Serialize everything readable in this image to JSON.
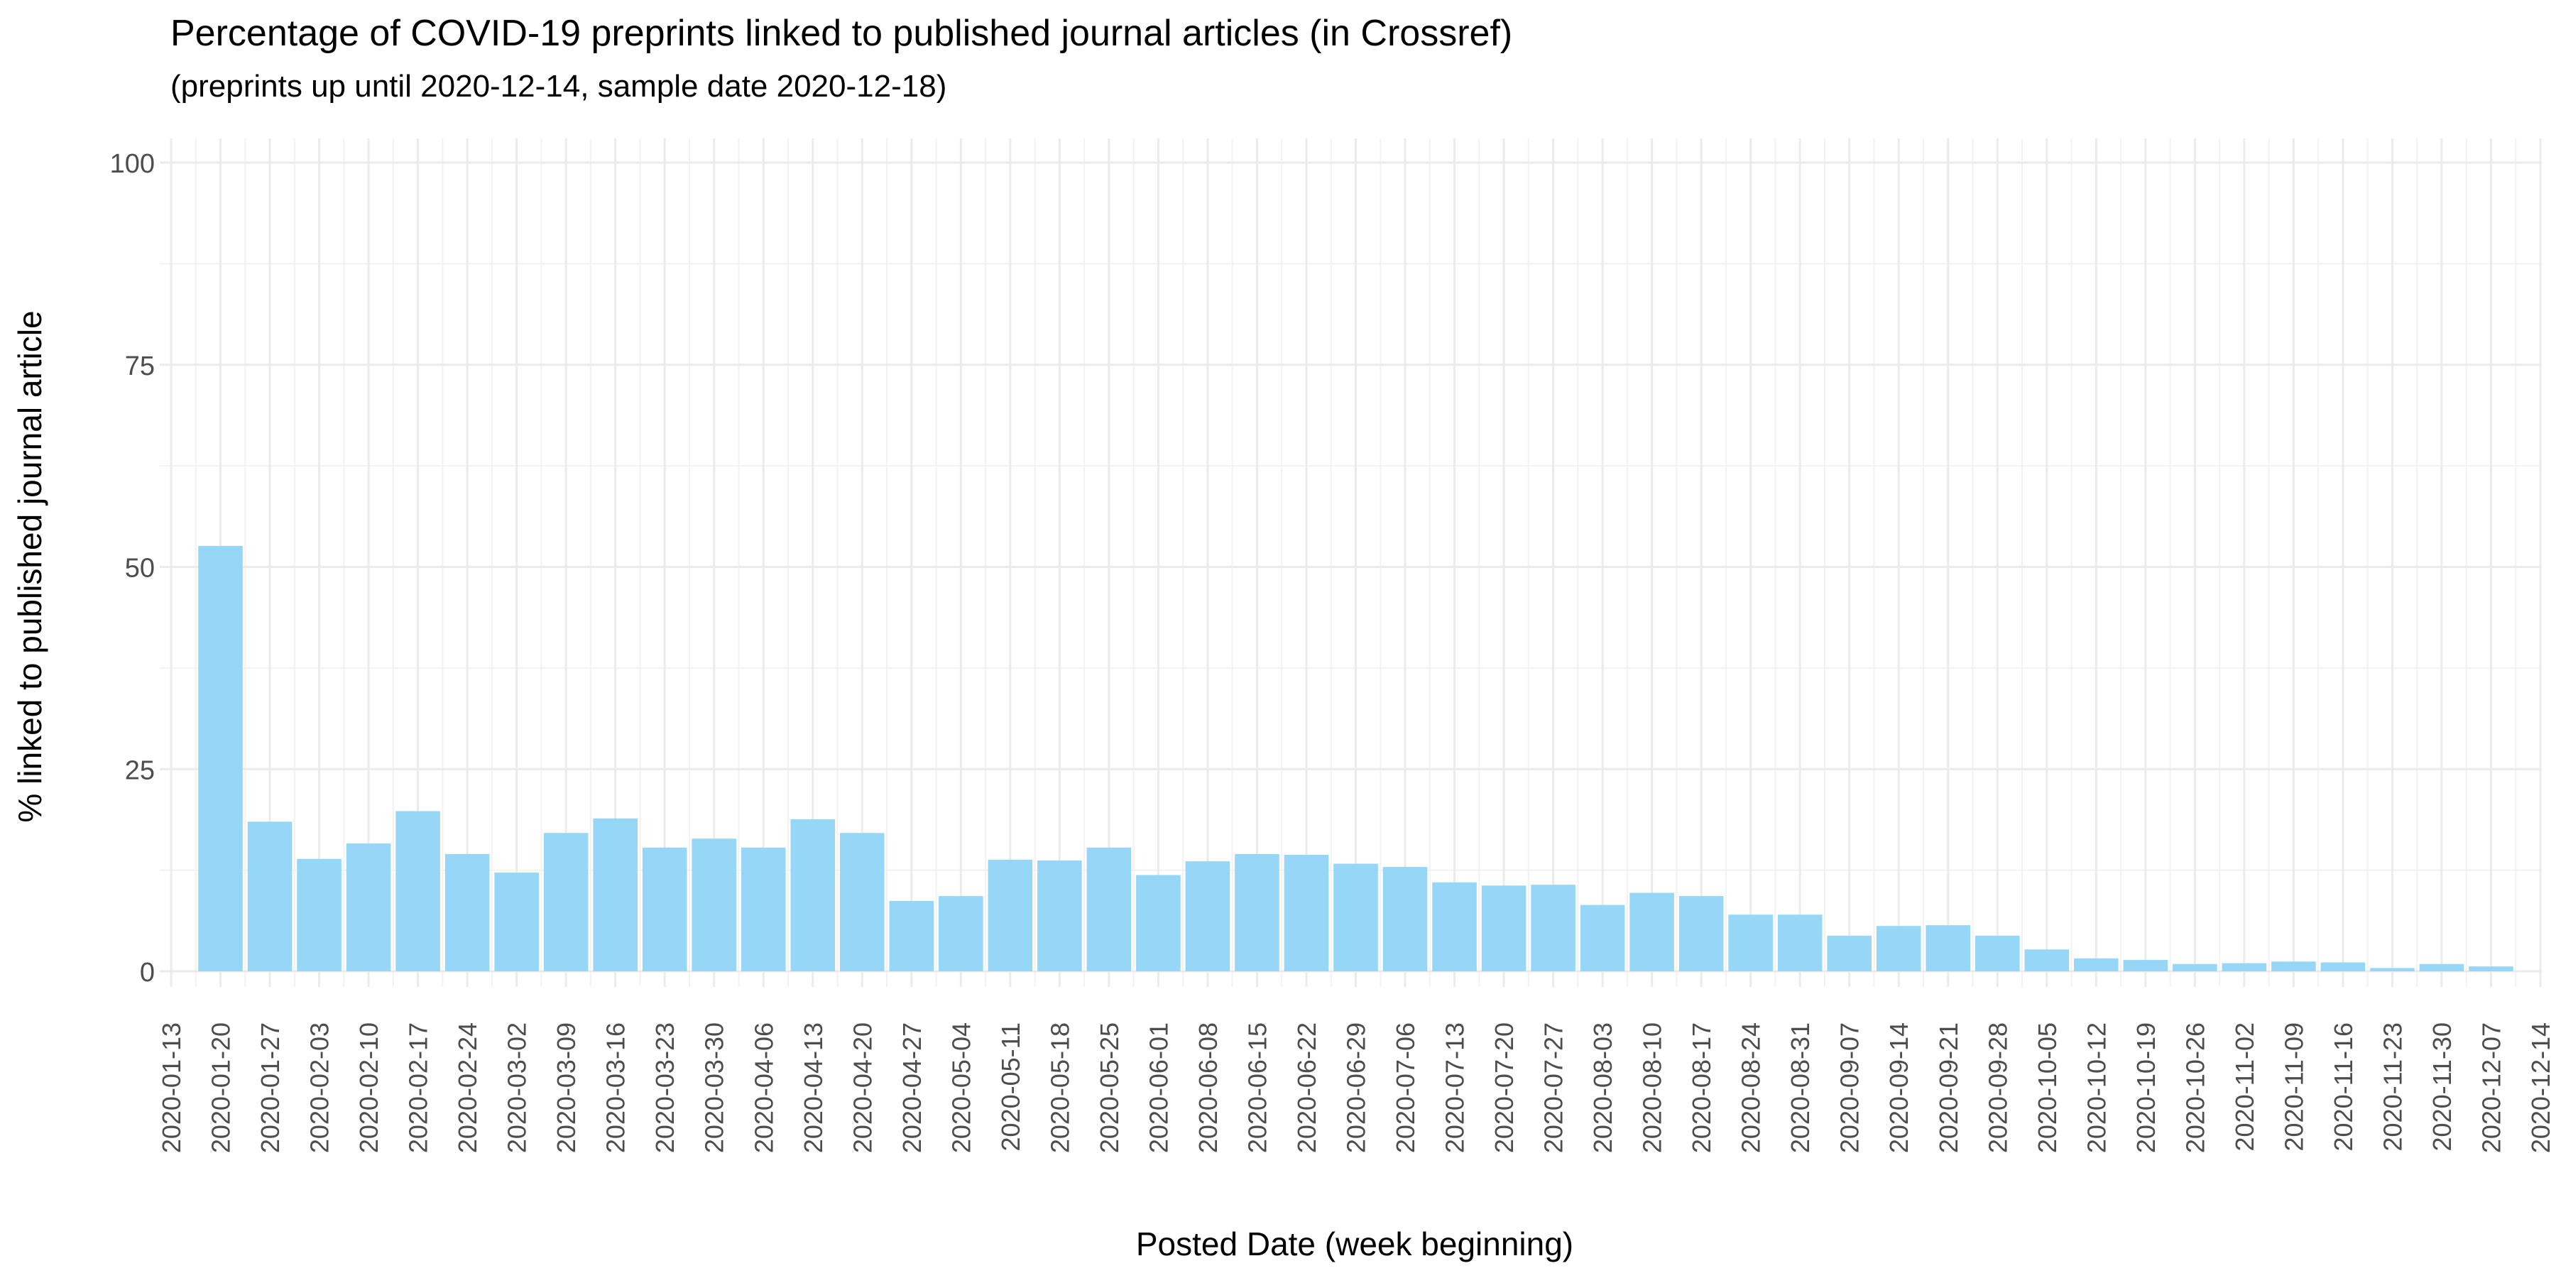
{
  "chart_data": {
    "type": "bar",
    "title": "Percentage of COVID-19 preprints linked to published journal articles (in Crossref)",
    "subtitle": "(preprints up until 2020-12-14, sample date 2020-12-18)",
    "xlabel": "Posted Date (week beginning)",
    "ylabel": "% linked to published journal article",
    "ylim": [
      0,
      100
    ],
    "yticks": [
      0,
      25,
      50,
      75,
      100
    ],
    "grid": true,
    "legend": "none",
    "bar_color": "#96d7f8",
    "x_tick_labels": [
      "2020-01-13",
      "2020-01-20",
      "2020-01-27",
      "2020-02-03",
      "2020-02-10",
      "2020-02-17",
      "2020-02-24",
      "2020-03-02",
      "2020-03-09",
      "2020-03-16",
      "2020-03-23",
      "2020-03-30",
      "2020-04-06",
      "2020-04-13",
      "2020-04-20",
      "2020-04-27",
      "2020-05-04",
      "2020-05-11",
      "2020-05-18",
      "2020-05-25",
      "2020-06-01",
      "2020-06-08",
      "2020-06-15",
      "2020-06-22",
      "2020-06-29",
      "2020-07-06",
      "2020-07-13",
      "2020-07-20",
      "2020-07-27",
      "2020-08-03",
      "2020-08-10",
      "2020-08-17",
      "2020-08-24",
      "2020-08-31",
      "2020-09-07",
      "2020-09-14",
      "2020-09-21",
      "2020-09-28",
      "2020-10-05",
      "2020-10-12",
      "2020-10-19",
      "2020-10-26",
      "2020-11-02",
      "2020-11-09",
      "2020-11-16",
      "2020-11-23",
      "2020-11-30",
      "2020-12-07",
      "2020-12-14"
    ],
    "categories": [
      "2020-01-20",
      "2020-01-27",
      "2020-02-03",
      "2020-02-10",
      "2020-02-17",
      "2020-02-24",
      "2020-03-02",
      "2020-03-09",
      "2020-03-16",
      "2020-03-23",
      "2020-03-30",
      "2020-04-06",
      "2020-04-13",
      "2020-04-20",
      "2020-04-27",
      "2020-05-04",
      "2020-05-11",
      "2020-05-18",
      "2020-05-25",
      "2020-06-01",
      "2020-06-08",
      "2020-06-15",
      "2020-06-22",
      "2020-06-29",
      "2020-07-06",
      "2020-07-13",
      "2020-07-20",
      "2020-07-27",
      "2020-08-03",
      "2020-08-10",
      "2020-08-17",
      "2020-08-24",
      "2020-08-31",
      "2020-09-07",
      "2020-09-14",
      "2020-09-21",
      "2020-09-28",
      "2020-10-05",
      "2020-10-12",
      "2020-10-19",
      "2020-10-26",
      "2020-11-02",
      "2020-11-09",
      "2020-11-16",
      "2020-11-23",
      "2020-11-30",
      "2020-12-07"
    ],
    "values": [
      52.6,
      18.5,
      13.9,
      15.8,
      19.8,
      14.5,
      12.2,
      17.1,
      18.9,
      15.3,
      16.4,
      15.3,
      18.8,
      17.1,
      8.7,
      9.3,
      13.8,
      13.7,
      15.3,
      11.9,
      13.6,
      14.5,
      14.4,
      13.3,
      12.9,
      11.0,
      10.6,
      10.7,
      8.2,
      9.7,
      9.3,
      7.0,
      7.0,
      4.4,
      5.6,
      5.7,
      4.4,
      2.7,
      1.6,
      1.4,
      0.9,
      1.0,
      1.2,
      1.1,
      0.4,
      0.9,
      0.6
    ]
  }
}
